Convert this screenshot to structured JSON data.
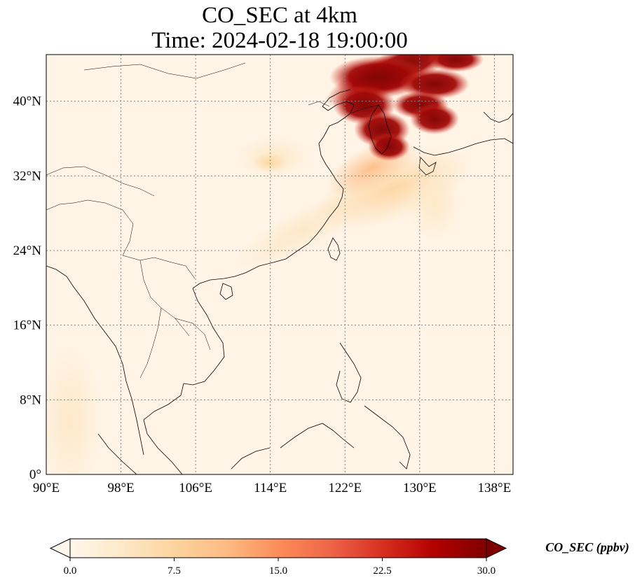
{
  "title": {
    "line1": "CO_SEC at 4km",
    "line2": "Time: 2024-02-18 19:00:00"
  },
  "map": {
    "lon_range": [
      90,
      140
    ],
    "lat_range": [
      0,
      45
    ],
    "gridlines": true,
    "x_ticks": [
      "90°E",
      "98°E",
      "106°E",
      "114°E",
      "122°E",
      "130°E",
      "138°E"
    ],
    "x_tick_values": [
      90,
      98,
      106,
      114,
      122,
      130,
      138
    ],
    "y_ticks": [
      "0°",
      "8°N",
      "16°N",
      "24°N",
      "32°N",
      "40°N"
    ],
    "y_tick_values": [
      0,
      8,
      16,
      24,
      32,
      40
    ],
    "features": "coastlines and country borders",
    "field": "CO_SEC",
    "max_region": "Korea / Yellow Sea / northeast China / Sea of Japan"
  },
  "colorbar": {
    "label": "CO_SEC (ppbv)",
    "ticks": [
      "0.0",
      "7.5",
      "15.0",
      "22.5",
      "30.0"
    ],
    "tick_values": [
      0,
      7.5,
      15,
      22.5,
      30
    ],
    "range": [
      0,
      30
    ],
    "colormap": "OrRd",
    "extend": "both",
    "colors": [
      "#fff7ec",
      "#fee8c8",
      "#fdd49e",
      "#fdbb84",
      "#fc8d59",
      "#ef6548",
      "#d7301f",
      "#b30000",
      "#7f0000"
    ]
  }
}
